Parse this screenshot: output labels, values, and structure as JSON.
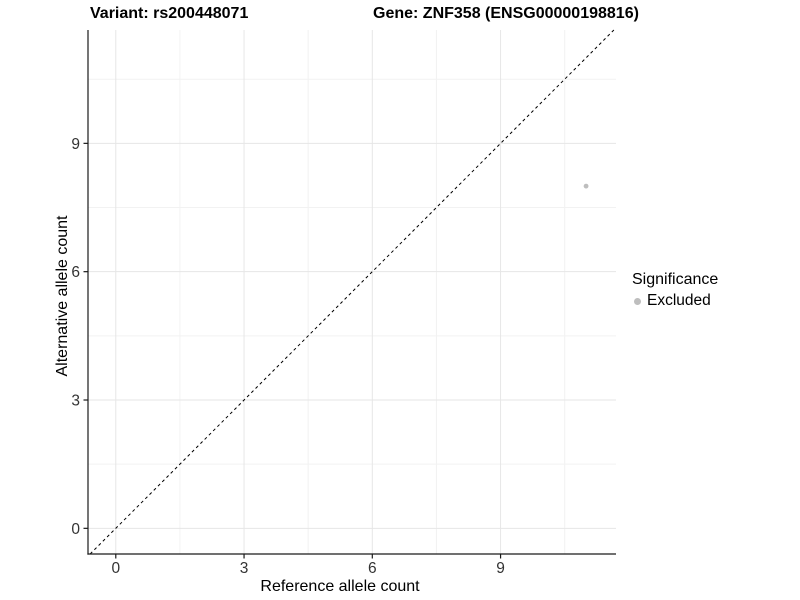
{
  "figure": {
    "titles": [
      "Variant: rs200448071",
      "Gene: ZNF358 (ENSG00000198816)"
    ]
  },
  "chart_data": {
    "type": "scatter",
    "titles": [
      "Variant: rs200448071",
      "Gene: ZNF358 (ENSG00000198816)"
    ],
    "xlabel": "Reference allele count",
    "ylabel": "Alternative allele count",
    "xlim": [
      -0.65,
      11.7
    ],
    "ylim": [
      -0.6,
      11.65
    ],
    "xticks": [
      0,
      3,
      6,
      9
    ],
    "yticks": [
      0,
      3,
      6,
      9
    ],
    "xticks_minor": [
      1.5,
      4.5,
      7.5,
      10.5
    ],
    "yticks_minor": [
      1.5,
      4.5,
      7.5,
      10.5
    ],
    "grid": "major+minor",
    "series": [
      {
        "name": "Excluded",
        "color": "#bebebe",
        "points": [
          [
            11,
            8
          ]
        ]
      }
    ],
    "reference_line": {
      "kind": "identity",
      "style": "dashed",
      "color": "#000000"
    },
    "legend": {
      "title": "Significance",
      "position": "right",
      "entries": [
        {
          "label": "Excluded",
          "color": "#bebebe"
        }
      ]
    }
  },
  "colors": {
    "background": "#ffffff",
    "grid_major": "#e6e6e6",
    "grid_minor": "#f2f2f2",
    "axis_line": "#1a1a1a",
    "tick_label": "#333333",
    "point": "#bebebe",
    "text": "#000000"
  }
}
